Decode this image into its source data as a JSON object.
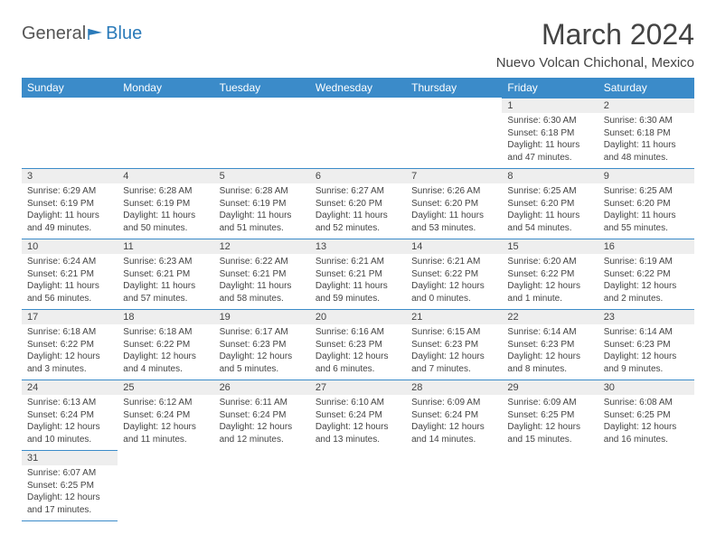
{
  "logo": {
    "part1": "General",
    "part2": "Blue"
  },
  "title": "March 2024",
  "location": "Nuevo Volcan Chichonal, Mexico",
  "day_headers": [
    "Sunday",
    "Monday",
    "Tuesday",
    "Wednesday",
    "Thursday",
    "Friday",
    "Saturday"
  ],
  "colors": {
    "header_bg": "#3b8bc9",
    "header_text": "#ffffff",
    "daynum_bg": "#eeeeee",
    "border": "#3b8bc9",
    "logo_gray": "#555555",
    "logo_blue": "#2a7ab9",
    "text": "#444444"
  },
  "weeks": [
    [
      {
        "num": "",
        "sunrise": "",
        "sunset": "",
        "daylight": ""
      },
      {
        "num": "",
        "sunrise": "",
        "sunset": "",
        "daylight": ""
      },
      {
        "num": "",
        "sunrise": "",
        "sunset": "",
        "daylight": ""
      },
      {
        "num": "",
        "sunrise": "",
        "sunset": "",
        "daylight": ""
      },
      {
        "num": "",
        "sunrise": "",
        "sunset": "",
        "daylight": ""
      },
      {
        "num": "1",
        "sunrise": "Sunrise: 6:30 AM",
        "sunset": "Sunset: 6:18 PM",
        "daylight": "Daylight: 11 hours and 47 minutes."
      },
      {
        "num": "2",
        "sunrise": "Sunrise: 6:30 AM",
        "sunset": "Sunset: 6:18 PM",
        "daylight": "Daylight: 11 hours and 48 minutes."
      }
    ],
    [
      {
        "num": "3",
        "sunrise": "Sunrise: 6:29 AM",
        "sunset": "Sunset: 6:19 PM",
        "daylight": "Daylight: 11 hours and 49 minutes."
      },
      {
        "num": "4",
        "sunrise": "Sunrise: 6:28 AM",
        "sunset": "Sunset: 6:19 PM",
        "daylight": "Daylight: 11 hours and 50 minutes."
      },
      {
        "num": "5",
        "sunrise": "Sunrise: 6:28 AM",
        "sunset": "Sunset: 6:19 PM",
        "daylight": "Daylight: 11 hours and 51 minutes."
      },
      {
        "num": "6",
        "sunrise": "Sunrise: 6:27 AM",
        "sunset": "Sunset: 6:20 PM",
        "daylight": "Daylight: 11 hours and 52 minutes."
      },
      {
        "num": "7",
        "sunrise": "Sunrise: 6:26 AM",
        "sunset": "Sunset: 6:20 PM",
        "daylight": "Daylight: 11 hours and 53 minutes."
      },
      {
        "num": "8",
        "sunrise": "Sunrise: 6:25 AM",
        "sunset": "Sunset: 6:20 PM",
        "daylight": "Daylight: 11 hours and 54 minutes."
      },
      {
        "num": "9",
        "sunrise": "Sunrise: 6:25 AM",
        "sunset": "Sunset: 6:20 PM",
        "daylight": "Daylight: 11 hours and 55 minutes."
      }
    ],
    [
      {
        "num": "10",
        "sunrise": "Sunrise: 6:24 AM",
        "sunset": "Sunset: 6:21 PM",
        "daylight": "Daylight: 11 hours and 56 minutes."
      },
      {
        "num": "11",
        "sunrise": "Sunrise: 6:23 AM",
        "sunset": "Sunset: 6:21 PM",
        "daylight": "Daylight: 11 hours and 57 minutes."
      },
      {
        "num": "12",
        "sunrise": "Sunrise: 6:22 AM",
        "sunset": "Sunset: 6:21 PM",
        "daylight": "Daylight: 11 hours and 58 minutes."
      },
      {
        "num": "13",
        "sunrise": "Sunrise: 6:21 AM",
        "sunset": "Sunset: 6:21 PM",
        "daylight": "Daylight: 11 hours and 59 minutes."
      },
      {
        "num": "14",
        "sunrise": "Sunrise: 6:21 AM",
        "sunset": "Sunset: 6:22 PM",
        "daylight": "Daylight: 12 hours and 0 minutes."
      },
      {
        "num": "15",
        "sunrise": "Sunrise: 6:20 AM",
        "sunset": "Sunset: 6:22 PM",
        "daylight": "Daylight: 12 hours and 1 minute."
      },
      {
        "num": "16",
        "sunrise": "Sunrise: 6:19 AM",
        "sunset": "Sunset: 6:22 PM",
        "daylight": "Daylight: 12 hours and 2 minutes."
      }
    ],
    [
      {
        "num": "17",
        "sunrise": "Sunrise: 6:18 AM",
        "sunset": "Sunset: 6:22 PM",
        "daylight": "Daylight: 12 hours and 3 minutes."
      },
      {
        "num": "18",
        "sunrise": "Sunrise: 6:18 AM",
        "sunset": "Sunset: 6:22 PM",
        "daylight": "Daylight: 12 hours and 4 minutes."
      },
      {
        "num": "19",
        "sunrise": "Sunrise: 6:17 AM",
        "sunset": "Sunset: 6:23 PM",
        "daylight": "Daylight: 12 hours and 5 minutes."
      },
      {
        "num": "20",
        "sunrise": "Sunrise: 6:16 AM",
        "sunset": "Sunset: 6:23 PM",
        "daylight": "Daylight: 12 hours and 6 minutes."
      },
      {
        "num": "21",
        "sunrise": "Sunrise: 6:15 AM",
        "sunset": "Sunset: 6:23 PM",
        "daylight": "Daylight: 12 hours and 7 minutes."
      },
      {
        "num": "22",
        "sunrise": "Sunrise: 6:14 AM",
        "sunset": "Sunset: 6:23 PM",
        "daylight": "Daylight: 12 hours and 8 minutes."
      },
      {
        "num": "23",
        "sunrise": "Sunrise: 6:14 AM",
        "sunset": "Sunset: 6:23 PM",
        "daylight": "Daylight: 12 hours and 9 minutes."
      }
    ],
    [
      {
        "num": "24",
        "sunrise": "Sunrise: 6:13 AM",
        "sunset": "Sunset: 6:24 PM",
        "daylight": "Daylight: 12 hours and 10 minutes."
      },
      {
        "num": "25",
        "sunrise": "Sunrise: 6:12 AM",
        "sunset": "Sunset: 6:24 PM",
        "daylight": "Daylight: 12 hours and 11 minutes."
      },
      {
        "num": "26",
        "sunrise": "Sunrise: 6:11 AM",
        "sunset": "Sunset: 6:24 PM",
        "daylight": "Daylight: 12 hours and 12 minutes."
      },
      {
        "num": "27",
        "sunrise": "Sunrise: 6:10 AM",
        "sunset": "Sunset: 6:24 PM",
        "daylight": "Daylight: 12 hours and 13 minutes."
      },
      {
        "num": "28",
        "sunrise": "Sunrise: 6:09 AM",
        "sunset": "Sunset: 6:24 PM",
        "daylight": "Daylight: 12 hours and 14 minutes."
      },
      {
        "num": "29",
        "sunrise": "Sunrise: 6:09 AM",
        "sunset": "Sunset: 6:25 PM",
        "daylight": "Daylight: 12 hours and 15 minutes."
      },
      {
        "num": "30",
        "sunrise": "Sunrise: 6:08 AM",
        "sunset": "Sunset: 6:25 PM",
        "daylight": "Daylight: 12 hours and 16 minutes."
      }
    ],
    [
      {
        "num": "31",
        "sunrise": "Sunrise: 6:07 AM",
        "sunset": "Sunset: 6:25 PM",
        "daylight": "Daylight: 12 hours and 17 minutes."
      },
      {
        "num": "",
        "sunrise": "",
        "sunset": "",
        "daylight": ""
      },
      {
        "num": "",
        "sunrise": "",
        "sunset": "",
        "daylight": ""
      },
      {
        "num": "",
        "sunrise": "",
        "sunset": "",
        "daylight": ""
      },
      {
        "num": "",
        "sunrise": "",
        "sunset": "",
        "daylight": ""
      },
      {
        "num": "",
        "sunrise": "",
        "sunset": "",
        "daylight": ""
      },
      {
        "num": "",
        "sunrise": "",
        "sunset": "",
        "daylight": ""
      }
    ]
  ]
}
